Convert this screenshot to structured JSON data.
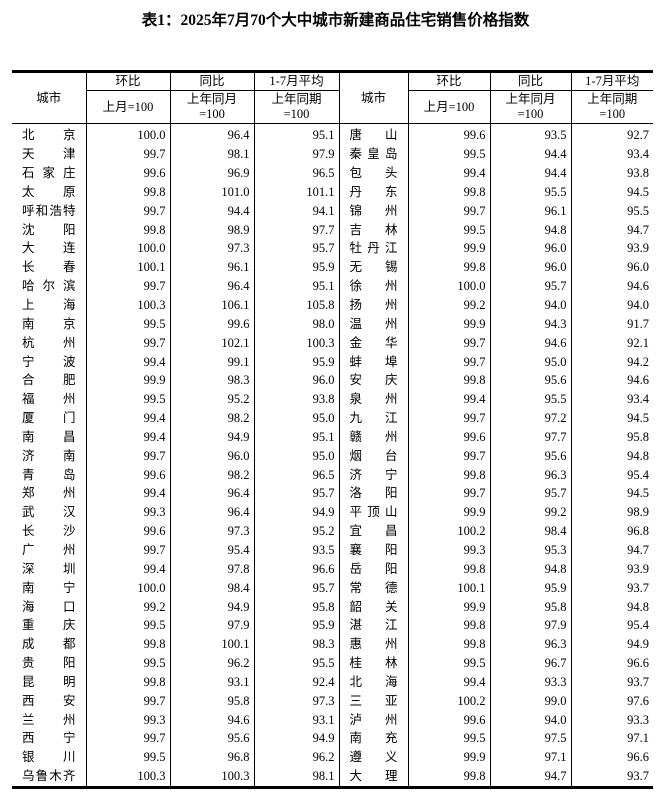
{
  "title": "表1：2025年7月70个大中城市新建商品住宅销售价格指数",
  "headers": {
    "city": "城市",
    "mom": "环比",
    "mom_base": "上月=100",
    "yoy": "同比",
    "yoy_base_1": "上年同月",
    "yoy_base_2": "=100",
    "avg": "1-7月平均",
    "avg_base_1": "上年同期",
    "avg_base_2": "=100"
  },
  "left": [
    [
      "北京",
      "100.0",
      "96.4",
      "95.1"
    ],
    [
      "天津",
      "99.7",
      "98.1",
      "97.9"
    ],
    [
      "石家庄",
      "99.6",
      "96.9",
      "96.5"
    ],
    [
      "太原",
      "99.8",
      "101.0",
      "101.1"
    ],
    [
      "呼和浩特",
      "99.7",
      "94.4",
      "94.1"
    ],
    [
      "沈阳",
      "99.8",
      "98.9",
      "97.7"
    ],
    [
      "大连",
      "100.0",
      "97.3",
      "95.7"
    ],
    [
      "长春",
      "100.1",
      "96.1",
      "95.9"
    ],
    [
      "哈尔滨",
      "99.7",
      "96.4",
      "95.1"
    ],
    [
      "上海",
      "100.3",
      "106.1",
      "105.8"
    ],
    [
      "南京",
      "99.5",
      "99.6",
      "98.0"
    ],
    [
      "杭州",
      "99.7",
      "102.1",
      "100.3"
    ],
    [
      "宁波",
      "99.4",
      "99.1",
      "95.9"
    ],
    [
      "合肥",
      "99.9",
      "98.3",
      "96.0"
    ],
    [
      "福州",
      "99.5",
      "95.2",
      "93.8"
    ],
    [
      "厦门",
      "99.4",
      "98.2",
      "95.0"
    ],
    [
      "南昌",
      "99.4",
      "94.9",
      "95.1"
    ],
    [
      "济南",
      "99.7",
      "96.0",
      "95.0"
    ],
    [
      "青岛",
      "99.6",
      "98.2",
      "96.5"
    ],
    [
      "郑州",
      "99.4",
      "96.4",
      "95.7"
    ],
    [
      "武汉",
      "99.3",
      "96.4",
      "94.9"
    ],
    [
      "长沙",
      "99.6",
      "97.3",
      "95.2"
    ],
    [
      "广州",
      "99.7",
      "95.4",
      "93.5"
    ],
    [
      "深圳",
      "99.4",
      "97.8",
      "96.6"
    ],
    [
      "南宁",
      "100.0",
      "98.4",
      "95.7"
    ],
    [
      "海口",
      "99.2",
      "94.9",
      "95.8"
    ],
    [
      "重庆",
      "99.5",
      "97.9",
      "95.9"
    ],
    [
      "成都",
      "99.8",
      "100.1",
      "98.3"
    ],
    [
      "贵阳",
      "99.5",
      "96.2",
      "95.5"
    ],
    [
      "昆明",
      "99.8",
      "93.1",
      "92.4"
    ],
    [
      "西安",
      "99.7",
      "95.8",
      "97.3"
    ],
    [
      "兰州",
      "99.3",
      "94.6",
      "93.1"
    ],
    [
      "西宁",
      "99.7",
      "95.6",
      "94.9"
    ],
    [
      "银川",
      "99.5",
      "96.8",
      "96.2"
    ],
    [
      "乌鲁木齐",
      "100.3",
      "100.3",
      "98.1"
    ]
  ],
  "right": [
    [
      "唐山",
      "99.6",
      "93.5",
      "92.7"
    ],
    [
      "秦皇岛",
      "99.5",
      "94.4",
      "93.4"
    ],
    [
      "包头",
      "99.4",
      "94.4",
      "93.8"
    ],
    [
      "丹东",
      "99.8",
      "95.5",
      "94.5"
    ],
    [
      "锦州",
      "99.7",
      "96.1",
      "95.5"
    ],
    [
      "吉林",
      "99.5",
      "94.8",
      "94.7"
    ],
    [
      "牡丹江",
      "99.9",
      "96.0",
      "93.9"
    ],
    [
      "无锡",
      "99.8",
      "96.0",
      "96.0"
    ],
    [
      "徐州",
      "100.0",
      "95.7",
      "94.6"
    ],
    [
      "扬州",
      "99.2",
      "94.0",
      "94.0"
    ],
    [
      "温州",
      "99.9",
      "94.3",
      "91.7"
    ],
    [
      "金华",
      "99.7",
      "94.6",
      "92.1"
    ],
    [
      "蚌埠",
      "99.7",
      "95.0",
      "94.2"
    ],
    [
      "安庆",
      "99.8",
      "95.6",
      "94.6"
    ],
    [
      "泉州",
      "99.4",
      "95.5",
      "93.4"
    ],
    [
      "九江",
      "99.7",
      "97.2",
      "94.5"
    ],
    [
      "赣州",
      "99.6",
      "97.7",
      "95.8"
    ],
    [
      "烟台",
      "99.7",
      "95.6",
      "94.8"
    ],
    [
      "济宁",
      "99.8",
      "96.3",
      "95.4"
    ],
    [
      "洛阳",
      "99.7",
      "95.7",
      "94.5"
    ],
    [
      "平顶山",
      "99.9",
      "99.2",
      "98.9"
    ],
    [
      "宜昌",
      "100.2",
      "98.4",
      "96.8"
    ],
    [
      "襄阳",
      "99.3",
      "95.3",
      "94.7"
    ],
    [
      "岳阳",
      "99.8",
      "94.8",
      "93.9"
    ],
    [
      "常德",
      "100.1",
      "95.9",
      "93.7"
    ],
    [
      "韶关",
      "99.9",
      "95.8",
      "94.8"
    ],
    [
      "湛江",
      "99.8",
      "97.9",
      "95.4"
    ],
    [
      "惠州",
      "99.8",
      "96.3",
      "94.9"
    ],
    [
      "桂林",
      "99.5",
      "96.7",
      "96.6"
    ],
    [
      "北海",
      "99.4",
      "93.3",
      "93.7"
    ],
    [
      "三亚",
      "100.2",
      "99.0",
      "97.6"
    ],
    [
      "泸州",
      "99.6",
      "94.0",
      "93.3"
    ],
    [
      "南充",
      "99.5",
      "97.5",
      "97.1"
    ],
    [
      "遵义",
      "99.9",
      "97.1",
      "96.6"
    ],
    [
      "大理",
      "99.8",
      "94.7",
      "93.7"
    ]
  ]
}
